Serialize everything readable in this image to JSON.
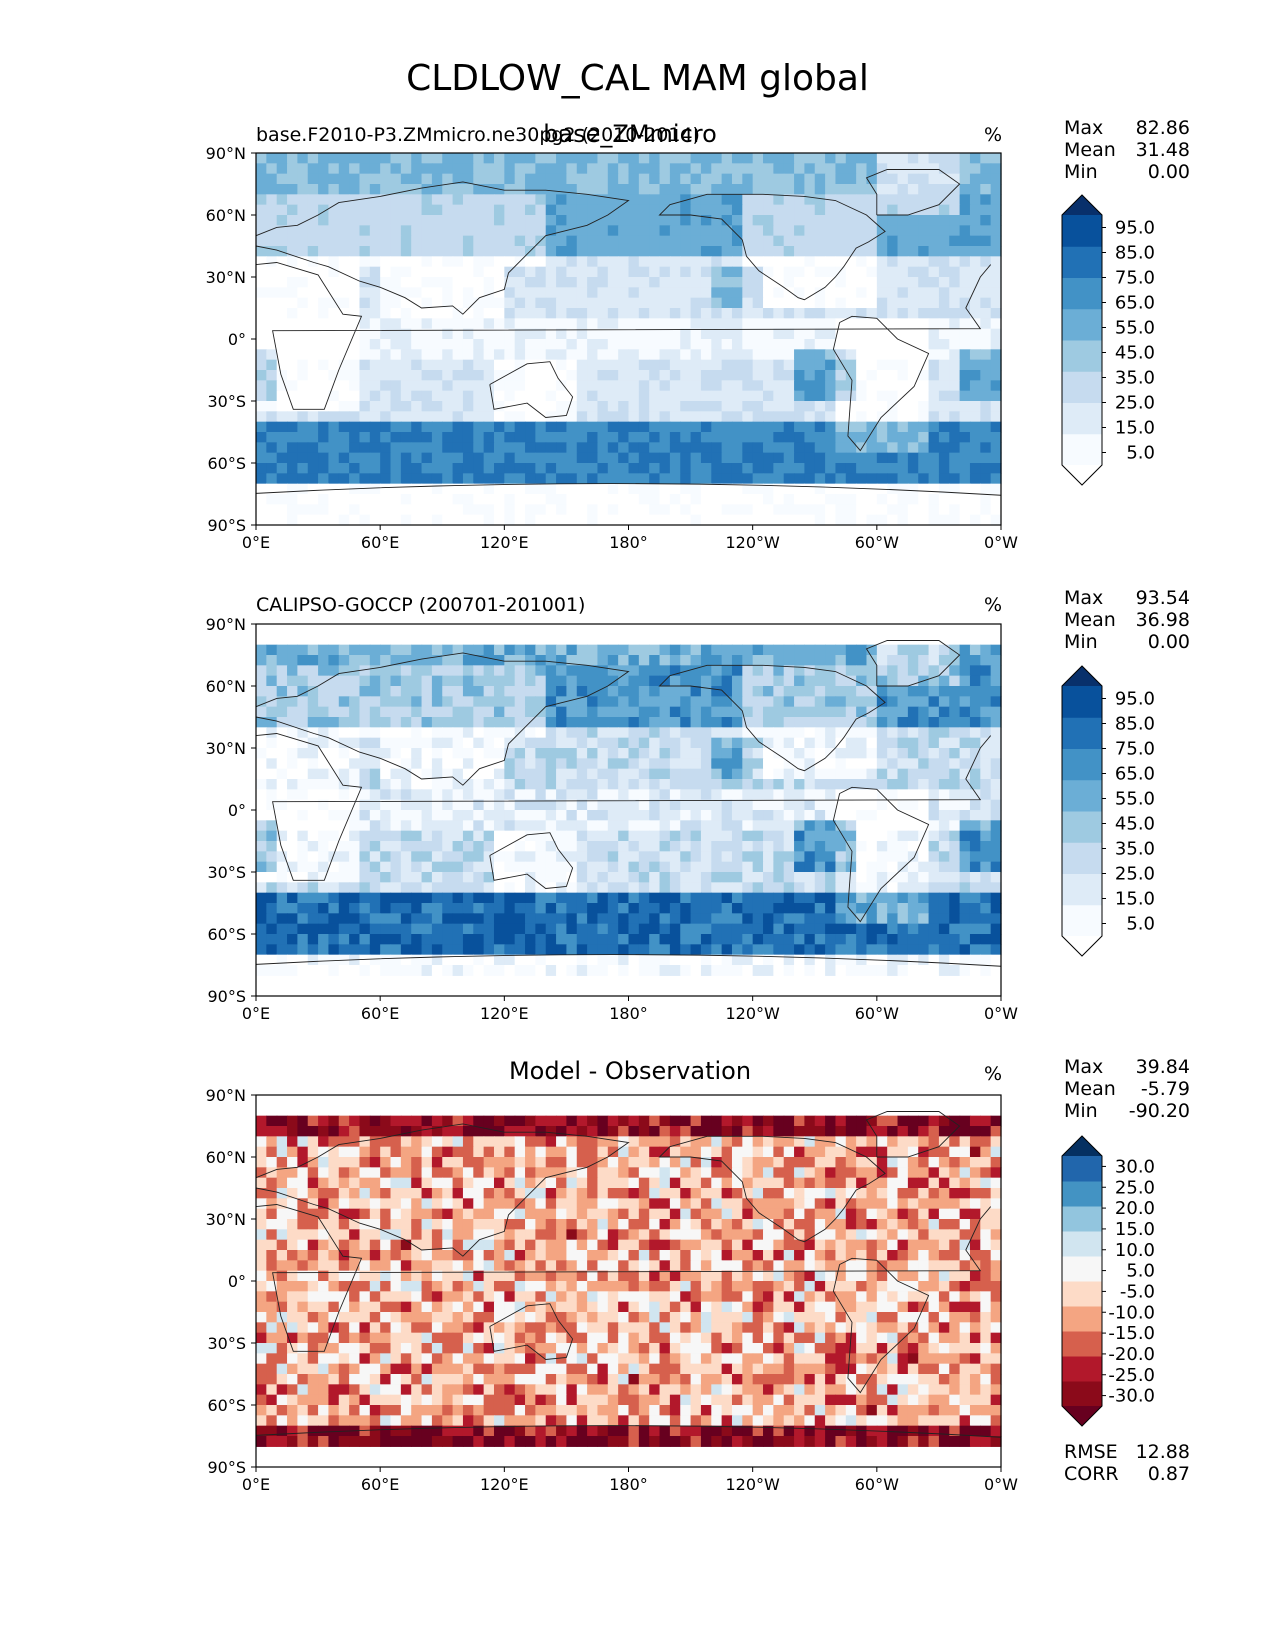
{
  "figure": {
    "title": "CLDLOW_CAL MAM global"
  },
  "panels": [
    {
      "left_title": "base.F2010-P3.ZMmicro.ne30pg2 (2010-2014)",
      "center_title": "base_ZMmicro",
      "units": "%",
      "stats": [
        {
          "label": "Max",
          "value": "82.86"
        },
        {
          "label": "Mean",
          "value": "31.48"
        },
        {
          "label": "Min",
          "value": "0.00"
        }
      ],
      "colorbar": {
        "labels": [
          "95.0",
          "85.0",
          "75.0",
          "65.0",
          "55.0",
          "45.0",
          "35.0",
          "25.0",
          "15.0",
          "5.0"
        ],
        "colors": [
          "#08306b",
          "#08519c",
          "#2171b5",
          "#4292c6",
          "#6baed6",
          "#9ecae1",
          "#c6dbef",
          "#deebf7",
          "#f7fbff",
          "#ffffff"
        ]
      },
      "footer": []
    },
    {
      "left_title": "CALIPSO-GOCCP (200701-201001)",
      "center_title": "",
      "units": "%",
      "stats": [
        {
          "label": "Max",
          "value": "93.54"
        },
        {
          "label": "Mean",
          "value": "36.98"
        },
        {
          "label": "Min",
          "value": "0.00"
        }
      ],
      "colorbar": {
        "labels": [
          "95.0",
          "85.0",
          "75.0",
          "65.0",
          "55.0",
          "45.0",
          "35.0",
          "25.0",
          "15.0",
          "5.0"
        ],
        "colors": [
          "#08306b",
          "#08519c",
          "#2171b5",
          "#4292c6",
          "#6baed6",
          "#9ecae1",
          "#c6dbef",
          "#deebf7",
          "#f7fbff",
          "#ffffff"
        ]
      },
      "footer": []
    },
    {
      "left_title": "",
      "center_title": "Model - Observation",
      "units": "%",
      "stats": [
        {
          "label": "Max",
          "value": "39.84"
        },
        {
          "label": "Mean",
          "value": "-5.79"
        },
        {
          "label": "Min",
          "value": "-90.20"
        }
      ],
      "colorbar": {
        "labels": [
          "30.0",
          "25.0",
          "20.0",
          "15.0",
          "10.0",
          "5.0",
          "-5.0",
          "-10.0",
          "-15.0",
          "-20.0",
          "-25.0",
          "-30.0"
        ],
        "colors": [
          "#053061",
          "#2166ac",
          "#4393c3",
          "#92c5de",
          "#d1e5f0",
          "#f7f7f7",
          "#fddbc7",
          "#f4a582",
          "#d6604d",
          "#b2182b",
          "#8b0a1a",
          "#67001f"
        ]
      },
      "footer": [
        {
          "label": "RMSE",
          "value": "12.88"
        },
        {
          "label": "CORR",
          "value": "0.87"
        }
      ]
    }
  ],
  "chart_data": [
    {
      "type": "heatmap",
      "title": "base_ZMmicro",
      "x_tick_labels": [
        "0°E",
        "60°E",
        "120°E",
        "180°",
        "120°W",
        "60°W",
        "0°W"
      ],
      "y_tick_labels": [
        "90°N",
        "60°N",
        "30°N",
        "0°",
        "30°S",
        "60°S",
        "90°S"
      ],
      "xlim": [
        0,
        360
      ],
      "ylim": [
        -90,
        90
      ],
      "color_levels": [
        5,
        15,
        25,
        35,
        45,
        55,
        65,
        75,
        85,
        95
      ],
      "stats": {
        "max": 82.86,
        "mean": 31.48,
        "min": 0.0
      }
    },
    {
      "type": "heatmap",
      "title": "CALIPSO-GOCCP (200701-201001)",
      "x_tick_labels": [
        "0°E",
        "60°E",
        "120°E",
        "180°",
        "120°W",
        "60°W",
        "0°W"
      ],
      "y_tick_labels": [
        "90°N",
        "60°N",
        "30°N",
        "0°",
        "30°S",
        "60°S",
        "90°S"
      ],
      "xlim": [
        0,
        360
      ],
      "ylim": [
        -90,
        90
      ],
      "color_levels": [
        5,
        15,
        25,
        35,
        45,
        55,
        65,
        75,
        85,
        95
      ],
      "stats": {
        "max": 93.54,
        "mean": 36.98,
        "min": 0.0
      }
    },
    {
      "type": "heatmap",
      "title": "Model - Observation",
      "x_tick_labels": [
        "0°E",
        "60°E",
        "120°E",
        "180°",
        "120°W",
        "60°W",
        "0°W"
      ],
      "y_tick_labels": [
        "90°N",
        "60°N",
        "30°N",
        "0°",
        "30°S",
        "60°S",
        "90°S"
      ],
      "xlim": [
        0,
        360
      ],
      "ylim": [
        -90,
        90
      ],
      "color_levels": [
        -30,
        -25,
        -20,
        -15,
        -10,
        -5,
        5,
        10,
        15,
        20,
        25,
        30
      ],
      "stats": {
        "max": 39.84,
        "mean": -5.79,
        "min": -90.2,
        "rmse": 12.88,
        "corr": 0.87
      }
    }
  ]
}
